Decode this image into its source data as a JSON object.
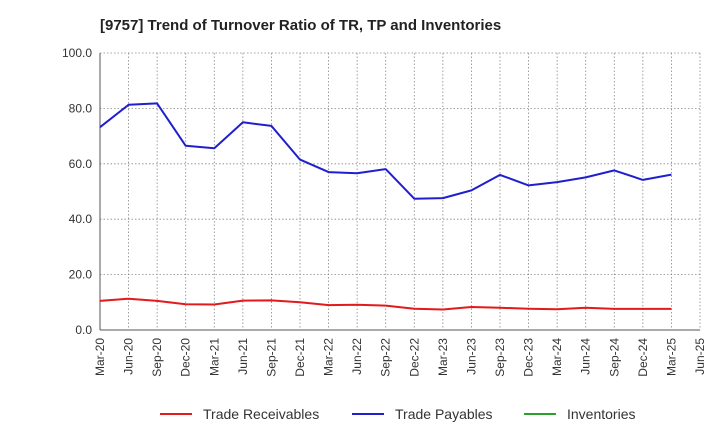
{
  "chart_data": {
    "type": "line",
    "title": "[9757]  Trend of Turnover Ratio of TR, TP and Inventories",
    "xlabel": "",
    "ylabel": "",
    "ylim": [
      0,
      100
    ],
    "y_ticks": [
      "0.0",
      "20.0",
      "40.0",
      "60.0",
      "80.0",
      "100.0"
    ],
    "x": [
      "Mar-20",
      "Jun-20",
      "Sep-20",
      "Dec-20",
      "Mar-21",
      "Jun-21",
      "Sep-21",
      "Dec-21",
      "Mar-22",
      "Jun-22",
      "Sep-22",
      "Dec-22",
      "Mar-23",
      "Jun-23",
      "Sep-23",
      "Dec-23",
      "Mar-24",
      "Jun-24",
      "Sep-24",
      "Dec-24",
      "Mar-25",
      "Jun-25"
    ],
    "grid": true,
    "legend_position": "bottom",
    "series": [
      {
        "name": "Trade Receivables",
        "color": "#e31a1c",
        "values": [
          10.5,
          11.3,
          10.5,
          9.3,
          9.2,
          10.6,
          10.7,
          10.0,
          9.0,
          9.1,
          8.8,
          7.7,
          7.4,
          8.3,
          8.0,
          7.7,
          7.5,
          8.0,
          7.6,
          7.6,
          7.6,
          null
        ]
      },
      {
        "name": "Trade Payables",
        "color": "#1f1fcf",
        "values": [
          73.2,
          81.3,
          81.8,
          66.5,
          65.6,
          75.0,
          73.7,
          61.5,
          57.0,
          56.6,
          58.1,
          47.4,
          47.6,
          50.4,
          56.0,
          52.2,
          53.4,
          55.1,
          57.6,
          54.2,
          56.1,
          null
        ]
      },
      {
        "name": "Inventories",
        "color": "#2ca02c",
        "values": [
          null,
          null,
          null,
          null,
          null,
          null,
          null,
          null,
          null,
          null,
          null,
          null,
          null,
          null,
          null,
          null,
          null,
          null,
          null,
          null,
          null,
          null
        ]
      }
    ]
  }
}
